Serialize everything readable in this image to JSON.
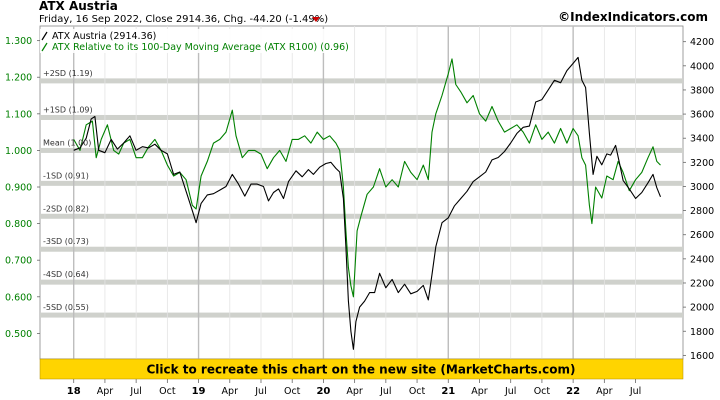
{
  "header": {
    "title": "ATX Austria",
    "subtitle": "Friday, 16 Sep 2022, Close 2914.36, Chg. -44.20 (-1.49%)",
    "credit": "©IndexIndicators.com",
    "down_color": "#cc0000"
  },
  "legend": {
    "items": [
      {
        "label": "ATX Austria (2914.36)",
        "color": "#000000"
      },
      {
        "label": "ATX Relative to its 100-Day Moving Average (ATX R100) (0.96)",
        "color": "#008000"
      }
    ]
  },
  "banner": {
    "text": "Click to recreate this chart on the new site (MarketCharts.com)",
    "background": "#ffd400"
  },
  "chart_data": {
    "type": "line",
    "x_ticks": [
      {
        "label": "18",
        "x": 2018.0,
        "bold": true
      },
      {
        "label": "Apr",
        "x": 2018.25
      },
      {
        "label": "Jul",
        "x": 2018.5
      },
      {
        "label": "Oct",
        "x": 2018.75
      },
      {
        "label": "19",
        "x": 2019.0,
        "bold": true
      },
      {
        "label": "Apr",
        "x": 2019.25
      },
      {
        "label": "Jul",
        "x": 2019.5
      },
      {
        "label": "Oct",
        "x": 2019.75
      },
      {
        "label": "20",
        "x": 2020.0,
        "bold": true
      },
      {
        "label": "Apr",
        "x": 2020.25
      },
      {
        "label": "Jul",
        "x": 2020.5
      },
      {
        "label": "Oct",
        "x": 2020.75
      },
      {
        "label": "21",
        "x": 2021.0,
        "bold": true
      },
      {
        "label": "Apr",
        "x": 2021.25
      },
      {
        "label": "Jul",
        "x": 2021.5
      },
      {
        "label": "Oct",
        "x": 2021.75
      },
      {
        "label": "22",
        "x": 2022.0,
        "bold": true
      },
      {
        "label": "Apr",
        "x": 2022.25
      },
      {
        "label": "Jul",
        "x": 2022.5
      }
    ],
    "xlim": [
      2017.73,
      2022.88
    ],
    "left_axis": {
      "ylim": [
        0.43,
        1.34
      ],
      "ticks": [
        "1.300",
        "1.200",
        "1.100",
        "1.000",
        "0.900",
        "0.800",
        "0.700",
        "0.600",
        "0.500"
      ]
    },
    "right_axis": {
      "ylim": [
        1570,
        4330
      ],
      "ticks": [
        4200,
        4000,
        3800,
        3600,
        3400,
        3200,
        3000,
        2800,
        2600,
        2400,
        2200,
        2000,
        1800,
        1600
      ]
    },
    "sd_bands": [
      {
        "label": "+2SD (1.19)",
        "value": 1.19
      },
      {
        "label": "+1SD (1.09)",
        "value": 1.09
      },
      {
        "label": "Mean (1.00)",
        "value": 1.0
      },
      {
        "label": "-1SD (0.91)",
        "value": 0.91
      },
      {
        "label": "-2SD (0.82)",
        "value": 0.82
      },
      {
        "label": "-3SD (0.73)",
        "value": 0.73
      },
      {
        "label": "-4SD (0.64)",
        "value": 0.64
      },
      {
        "label": "-5SD (0.55)",
        "value": 0.55
      }
    ],
    "series": [
      {
        "name": "ATX Austria",
        "axis": "right",
        "color": "#000000",
        "points": [
          [
            2018.0,
            3300
          ],
          [
            2018.05,
            3320
          ],
          [
            2018.1,
            3400
          ],
          [
            2018.14,
            3560
          ],
          [
            2018.17,
            3580
          ],
          [
            2018.2,
            3300
          ],
          [
            2018.25,
            3280
          ],
          [
            2018.3,
            3390
          ],
          [
            2018.35,
            3310
          ],
          [
            2018.4,
            3360
          ],
          [
            2018.45,
            3420
          ],
          [
            2018.5,
            3300
          ],
          [
            2018.55,
            3330
          ],
          [
            2018.6,
            3320
          ],
          [
            2018.65,
            3350
          ],
          [
            2018.7,
            3300
          ],
          [
            2018.75,
            3270
          ],
          [
            2018.8,
            3100
          ],
          [
            2018.85,
            3120
          ],
          [
            2018.9,
            2960
          ],
          [
            2018.95,
            2800
          ],
          [
            2018.98,
            2700
          ],
          [
            2019.02,
            2860
          ],
          [
            2019.07,
            2930
          ],
          [
            2019.12,
            2940
          ],
          [
            2019.17,
            2970
          ],
          [
            2019.22,
            3000
          ],
          [
            2019.27,
            3100
          ],
          [
            2019.32,
            3020
          ],
          [
            2019.37,
            2920
          ],
          [
            2019.42,
            3020
          ],
          [
            2019.47,
            3020
          ],
          [
            2019.52,
            3000
          ],
          [
            2019.56,
            2880
          ],
          [
            2019.6,
            2950
          ],
          [
            2019.64,
            2980
          ],
          [
            2019.68,
            2900
          ],
          [
            2019.72,
            3040
          ],
          [
            2019.78,
            3130
          ],
          [
            2019.83,
            3080
          ],
          [
            2019.88,
            3140
          ],
          [
            2019.92,
            3100
          ],
          [
            2019.97,
            3160
          ],
          [
            2020.02,
            3190
          ],
          [
            2020.06,
            3200
          ],
          [
            2020.1,
            3150
          ],
          [
            2020.13,
            3120
          ],
          [
            2020.16,
            2900
          ],
          [
            2020.18,
            2500
          ],
          [
            2020.2,
            2050
          ],
          [
            2020.22,
            1800
          ],
          [
            2020.24,
            1650
          ],
          [
            2020.26,
            1880
          ],
          [
            2020.29,
            2000
          ],
          [
            2020.33,
            2050
          ],
          [
            2020.37,
            2120
          ],
          [
            2020.41,
            2120
          ],
          [
            2020.45,
            2280
          ],
          [
            2020.5,
            2160
          ],
          [
            2020.55,
            2230
          ],
          [
            2020.6,
            2120
          ],
          [
            2020.65,
            2190
          ],
          [
            2020.7,
            2110
          ],
          [
            2020.75,
            2130
          ],
          [
            2020.8,
            2180
          ],
          [
            2020.84,
            2060
          ],
          [
            2020.87,
            2270
          ],
          [
            2020.9,
            2500
          ],
          [
            2020.95,
            2700
          ],
          [
            2021.0,
            2740
          ],
          [
            2021.05,
            2840
          ],
          [
            2021.1,
            2900
          ],
          [
            2021.15,
            2960
          ],
          [
            2021.2,
            3040
          ],
          [
            2021.25,
            3080
          ],
          [
            2021.3,
            3120
          ],
          [
            2021.35,
            3220
          ],
          [
            2021.4,
            3240
          ],
          [
            2021.45,
            3290
          ],
          [
            2021.5,
            3360
          ],
          [
            2021.55,
            3440
          ],
          [
            2021.6,
            3490
          ],
          [
            2021.65,
            3500
          ],
          [
            2021.7,
            3700
          ],
          [
            2021.75,
            3720
          ],
          [
            2021.8,
            3800
          ],
          [
            2021.85,
            3880
          ],
          [
            2021.9,
            3860
          ],
          [
            2021.95,
            3960
          ],
          [
            2022.0,
            4020
          ],
          [
            2022.04,
            4070
          ],
          [
            2022.07,
            3880
          ],
          [
            2022.1,
            3820
          ],
          [
            2022.13,
            3440
          ],
          [
            2022.16,
            3100
          ],
          [
            2022.19,
            3250
          ],
          [
            2022.23,
            3180
          ],
          [
            2022.27,
            3270
          ],
          [
            2022.3,
            3260
          ],
          [
            2022.34,
            3340
          ],
          [
            2022.37,
            3200
          ],
          [
            2022.4,
            3050
          ],
          [
            2022.45,
            2980
          ],
          [
            2022.5,
            2900
          ],
          [
            2022.55,
            2950
          ],
          [
            2022.6,
            3030
          ],
          [
            2022.64,
            3100
          ],
          [
            2022.67,
            2990
          ],
          [
            2022.7,
            2914
          ]
        ]
      },
      {
        "name": "ATX Relative to its 100-Day Moving Average (ATX R100)",
        "axis": "left",
        "color": "#008000",
        "points": [
          [
            2018.0,
            1.03
          ],
          [
            2018.05,
            1.0
          ],
          [
            2018.1,
            1.07
          ],
          [
            2018.15,
            1.08
          ],
          [
            2018.18,
            0.98
          ],
          [
            2018.22,
            1.03
          ],
          [
            2018.27,
            1.07
          ],
          [
            2018.32,
            1.0
          ],
          [
            2018.36,
            0.99
          ],
          [
            2018.4,
            1.02
          ],
          [
            2018.45,
            1.03
          ],
          [
            2018.5,
            0.98
          ],
          [
            2018.55,
            0.98
          ],
          [
            2018.6,
            1.01
          ],
          [
            2018.65,
            1.03
          ],
          [
            2018.7,
            1.0
          ],
          [
            2018.75,
            0.96
          ],
          [
            2018.8,
            0.93
          ],
          [
            2018.85,
            0.94
          ],
          [
            2018.9,
            0.92
          ],
          [
            2018.95,
            0.85
          ],
          [
            2018.98,
            0.84
          ],
          [
            2019.02,
            0.93
          ],
          [
            2019.07,
            0.97
          ],
          [
            2019.12,
            1.02
          ],
          [
            2019.17,
            1.03
          ],
          [
            2019.22,
            1.05
          ],
          [
            2019.27,
            1.11
          ],
          [
            2019.3,
            1.04
          ],
          [
            2019.35,
            0.98
          ],
          [
            2019.4,
            1.0
          ],
          [
            2019.45,
            1.0
          ],
          [
            2019.5,
            0.99
          ],
          [
            2019.55,
            0.95
          ],
          [
            2019.6,
            0.98
          ],
          [
            2019.65,
            1.0
          ],
          [
            2019.7,
            0.97
          ],
          [
            2019.75,
            1.03
          ],
          [
            2019.8,
            1.03
          ],
          [
            2019.85,
            1.04
          ],
          [
            2019.9,
            1.02
          ],
          [
            2019.95,
            1.05
          ],
          [
            2020.0,
            1.03
          ],
          [
            2020.05,
            1.04
          ],
          [
            2020.1,
            1.02
          ],
          [
            2020.13,
            1.0
          ],
          [
            2020.16,
            0.9
          ],
          [
            2020.18,
            0.78
          ],
          [
            2020.2,
            0.68
          ],
          [
            2020.22,
            0.63
          ],
          [
            2020.24,
            0.6
          ],
          [
            2020.27,
            0.78
          ],
          [
            2020.3,
            0.82
          ],
          [
            2020.35,
            0.88
          ],
          [
            2020.4,
            0.9
          ],
          [
            2020.45,
            0.95
          ],
          [
            2020.5,
            0.9
          ],
          [
            2020.55,
            0.92
          ],
          [
            2020.6,
            0.9
          ],
          [
            2020.65,
            0.97
          ],
          [
            2020.7,
            0.94
          ],
          [
            2020.75,
            0.92
          ],
          [
            2020.8,
            0.96
          ],
          [
            2020.84,
            0.92
          ],
          [
            2020.87,
            1.05
          ],
          [
            2020.9,
            1.1
          ],
          [
            2020.95,
            1.15
          ],
          [
            2021.0,
            1.21
          ],
          [
            2021.03,
            1.25
          ],
          [
            2021.06,
            1.18
          ],
          [
            2021.1,
            1.16
          ],
          [
            2021.15,
            1.13
          ],
          [
            2021.2,
            1.15
          ],
          [
            2021.25,
            1.1
          ],
          [
            2021.3,
            1.08
          ],
          [
            2021.35,
            1.12
          ],
          [
            2021.4,
            1.08
          ],
          [
            2021.45,
            1.05
          ],
          [
            2021.5,
            1.06
          ],
          [
            2021.55,
            1.07
          ],
          [
            2021.6,
            1.05
          ],
          [
            2021.65,
            1.02
          ],
          [
            2021.7,
            1.07
          ],
          [
            2021.75,
            1.03
          ],
          [
            2021.8,
            1.05
          ],
          [
            2021.85,
            1.02
          ],
          [
            2021.9,
            1.06
          ],
          [
            2021.95,
            1.02
          ],
          [
            2022.0,
            1.06
          ],
          [
            2022.04,
            1.04
          ],
          [
            2022.07,
            0.98
          ],
          [
            2022.1,
            0.96
          ],
          [
            2022.13,
            0.85
          ],
          [
            2022.15,
            0.8
          ],
          [
            2022.18,
            0.9
          ],
          [
            2022.23,
            0.87
          ],
          [
            2022.27,
            0.93
          ],
          [
            2022.32,
            0.92
          ],
          [
            2022.36,
            0.97
          ],
          [
            2022.4,
            0.94
          ],
          [
            2022.45,
            0.89
          ],
          [
            2022.5,
            0.92
          ],
          [
            2022.55,
            0.94
          ],
          [
            2022.6,
            0.98
          ],
          [
            2022.64,
            1.01
          ],
          [
            2022.67,
            0.97
          ],
          [
            2022.7,
            0.96
          ]
        ]
      }
    ]
  }
}
